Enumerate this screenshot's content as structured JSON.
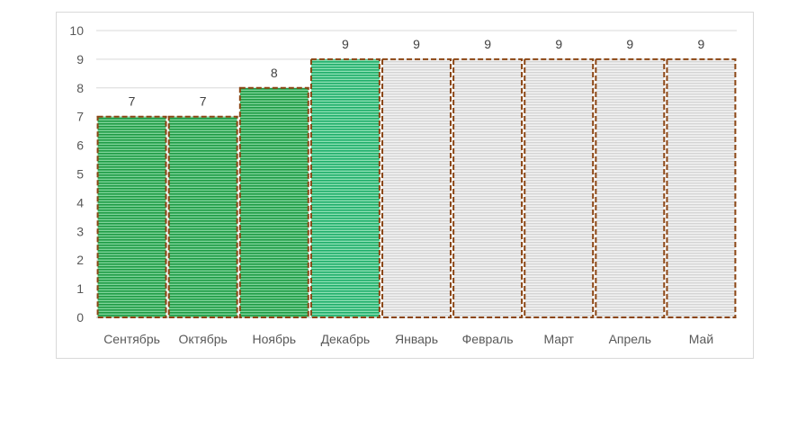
{
  "chart_data": {
    "type": "bar",
    "categories": [
      "Сентябрь",
      "Октябрь",
      "Ноябрь",
      "Декабрь",
      "Январь",
      "Февраль",
      "Март",
      "Апрель",
      "Май"
    ],
    "values": [
      7,
      7,
      8,
      9,
      9,
      9,
      9,
      9,
      9
    ],
    "data_labels": [
      "7",
      "7",
      "8",
      "9",
      "9",
      "9",
      "9",
      "9",
      "9"
    ],
    "y_ticks": [
      "0",
      "1",
      "2",
      "3",
      "4",
      "5",
      "6",
      "7",
      "8",
      "9",
      "10"
    ],
    "ylim": [
      0,
      10
    ],
    "grid": true,
    "legend": "none",
    "bar_styles": [
      "green-hatched",
      "green-hatched",
      "green-hatched",
      "teal-green-hatched",
      "grey-hatched",
      "grey-hatched",
      "grey-hatched",
      "grey-hatched",
      "grey-hatched"
    ],
    "colors": {
      "green-hatched": "#1e9b45",
      "teal-green-hatched": "#1fae6a",
      "grey-hatched": "#d4d4d4",
      "bar_border": "#8b4513",
      "gridline": "#d9d9d9",
      "axis": "#bfbfbf"
    }
  }
}
